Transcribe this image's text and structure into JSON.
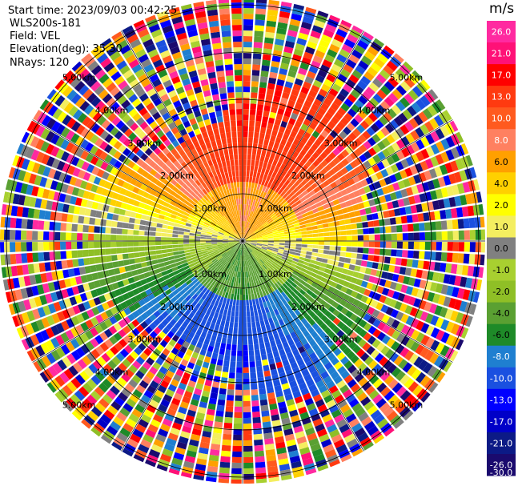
{
  "header": {
    "start_time": "Start time: 2023/09/03 00:42:25",
    "instrument": "WLS200s-181",
    "field": "Field: VEL",
    "elevation": "Elevation(deg): 35.30",
    "nrays": "NRays: 120"
  },
  "colorbar": {
    "unit": "m/s",
    "levels": [
      "26.0",
      "21.0",
      "17.0",
      "13.0",
      "10.0",
      "8.0",
      "6.0",
      "4.0",
      "2.0",
      "1.0",
      "0.0",
      "-1.0",
      "-2.0",
      "-4.0",
      "-6.0",
      "-8.0",
      "-10.0",
      "-13.0",
      "-17.0",
      "-21.0",
      "-26.0",
      "-30.0"
    ],
    "colors": [
      "#ff2aa0",
      "#ff1177",
      "#ff0000",
      "#ff3a10",
      "#ff5a1f",
      "#ff8060",
      "#ffa000",
      "#ffd000",
      "#ffff00",
      "#f4ee60",
      "#808080",
      "#a8d030",
      "#8fbf26",
      "#5aa032",
      "#1e8a28",
      "#1f7fd0",
      "#1a50e0",
      "#0000ff",
      "#0000c8",
      "#0c1a86",
      "#1a0a6e"
    ]
  },
  "range_rings": {
    "labels": [
      "1.00km",
      "2.00km",
      "3.00km",
      "4.00km",
      "5.00km"
    ]
  },
  "chart_data": {
    "type": "ppi",
    "field": "VEL",
    "units": "m/s",
    "n_rays": 120,
    "elevation_deg": 35.3,
    "range_rings_km": [
      1,
      2,
      3,
      4,
      5
    ],
    "velocity_range": [
      -30,
      30
    ]
  }
}
